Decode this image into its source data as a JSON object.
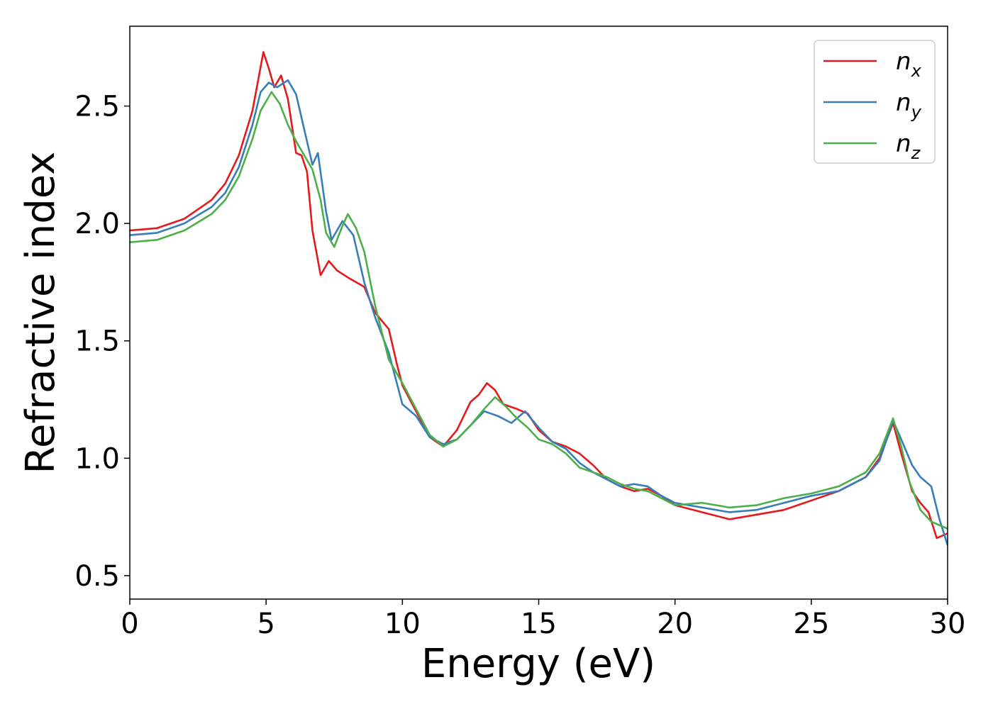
{
  "chart_data": {
    "type": "line",
    "xlabel": "Energy (eV)",
    "ylabel": "Refractive index",
    "xlim": [
      0,
      30
    ],
    "ylim": [
      0.4,
      2.84
    ],
    "xticks": [
      "0",
      "5",
      "10",
      "15",
      "20",
      "25",
      "30"
    ],
    "yticks": [
      "0.5",
      "1.0",
      "1.5",
      "2.0",
      "2.5"
    ],
    "legend_position": "top-right",
    "grid": false,
    "series": [
      {
        "name": "x",
        "label_base": "n",
        "label_sub": "x",
        "color": "#e41a1c",
        "points": [
          [
            0,
            1.97
          ],
          [
            1,
            1.98
          ],
          [
            2,
            2.02
          ],
          [
            3,
            2.1
          ],
          [
            3.5,
            2.17
          ],
          [
            4,
            2.29
          ],
          [
            4.5,
            2.48
          ],
          [
            4.9,
            2.73
          ],
          [
            5.1,
            2.66
          ],
          [
            5.3,
            2.58
          ],
          [
            5.55,
            2.63
          ],
          [
            5.8,
            2.53
          ],
          [
            6.1,
            2.3
          ],
          [
            6.3,
            2.29
          ],
          [
            6.5,
            2.22
          ],
          [
            6.7,
            1.97
          ],
          [
            7.0,
            1.78
          ],
          [
            7.3,
            1.84
          ],
          [
            7.6,
            1.8
          ],
          [
            8.0,
            1.77
          ],
          [
            8.3,
            1.75
          ],
          [
            8.6,
            1.73
          ],
          [
            9.0,
            1.62
          ],
          [
            9.5,
            1.55
          ],
          [
            9.8,
            1.4
          ],
          [
            10.0,
            1.31
          ],
          [
            10.5,
            1.2
          ],
          [
            11.0,
            1.09
          ],
          [
            11.5,
            1.05
          ],
          [
            12.0,
            1.12
          ],
          [
            12.5,
            1.24
          ],
          [
            12.8,
            1.27
          ],
          [
            13.1,
            1.32
          ],
          [
            13.4,
            1.29
          ],
          [
            13.7,
            1.23
          ],
          [
            14.2,
            1.21
          ],
          [
            14.6,
            1.19
          ],
          [
            15.0,
            1.12
          ],
          [
            15.5,
            1.07
          ],
          [
            16.0,
            1.05
          ],
          [
            16.5,
            1.02
          ],
          [
            17.0,
            0.97
          ],
          [
            17.5,
            0.91
          ],
          [
            18.0,
            0.88
          ],
          [
            18.5,
            0.86
          ],
          [
            19.0,
            0.87
          ],
          [
            19.5,
            0.84
          ],
          [
            20.0,
            0.8
          ],
          [
            21.0,
            0.77
          ],
          [
            22.0,
            0.74
          ],
          [
            23.0,
            0.76
          ],
          [
            24.0,
            0.78
          ],
          [
            25.0,
            0.82
          ],
          [
            26.0,
            0.86
          ],
          [
            27.0,
            0.92
          ],
          [
            27.5,
            1.0
          ],
          [
            28.0,
            1.15
          ],
          [
            28.3,
            1.02
          ],
          [
            28.7,
            0.86
          ],
          [
            29.0,
            0.81
          ],
          [
            29.3,
            0.77
          ],
          [
            29.6,
            0.66
          ],
          [
            30.0,
            0.68
          ]
        ]
      },
      {
        "name": "y",
        "label_base": "n",
        "label_sub": "y",
        "color": "#377eb8",
        "points": [
          [
            0,
            1.95
          ],
          [
            1,
            1.96
          ],
          [
            2,
            2.0
          ],
          [
            3,
            2.07
          ],
          [
            3.5,
            2.13
          ],
          [
            4,
            2.24
          ],
          [
            4.5,
            2.42
          ],
          [
            4.8,
            2.56
          ],
          [
            5.1,
            2.6
          ],
          [
            5.4,
            2.58
          ],
          [
            5.8,
            2.61
          ],
          [
            6.1,
            2.55
          ],
          [
            6.4,
            2.4
          ],
          [
            6.7,
            2.25
          ],
          [
            6.9,
            2.3
          ],
          [
            7.2,
            2.05
          ],
          [
            7.4,
            1.93
          ],
          [
            7.8,
            2.01
          ],
          [
            8.2,
            1.95
          ],
          [
            8.6,
            1.75
          ],
          [
            9.0,
            1.6
          ],
          [
            9.5,
            1.45
          ],
          [
            10.0,
            1.23
          ],
          [
            10.5,
            1.18
          ],
          [
            11.0,
            1.09
          ],
          [
            11.5,
            1.06
          ],
          [
            12.0,
            1.08
          ],
          [
            12.5,
            1.14
          ],
          [
            13.0,
            1.2
          ],
          [
            13.5,
            1.18
          ],
          [
            14.0,
            1.15
          ],
          [
            14.5,
            1.2
          ],
          [
            15.0,
            1.13
          ],
          [
            15.5,
            1.07
          ],
          [
            16.0,
            1.04
          ],
          [
            16.5,
            0.98
          ],
          [
            17.0,
            0.94
          ],
          [
            17.5,
            0.91
          ],
          [
            18.0,
            0.88
          ],
          [
            18.5,
            0.89
          ],
          [
            19.0,
            0.88
          ],
          [
            19.5,
            0.84
          ],
          [
            20.0,
            0.81
          ],
          [
            21.0,
            0.79
          ],
          [
            22.0,
            0.77
          ],
          [
            23.0,
            0.78
          ],
          [
            24.0,
            0.81
          ],
          [
            25.0,
            0.84
          ],
          [
            26.0,
            0.86
          ],
          [
            27.0,
            0.92
          ],
          [
            27.5,
            0.99
          ],
          [
            28.0,
            1.16
          ],
          [
            28.3,
            1.08
          ],
          [
            28.7,
            0.97
          ],
          [
            29.0,
            0.92
          ],
          [
            29.4,
            0.88
          ],
          [
            29.7,
            0.74
          ],
          [
            30.0,
            0.63
          ]
        ]
      },
      {
        "name": "z",
        "label_base": "n",
        "label_sub": "z",
        "color": "#4daf4a",
        "points": [
          [
            0,
            1.92
          ],
          [
            1,
            1.93
          ],
          [
            2,
            1.97
          ],
          [
            3,
            2.04
          ],
          [
            3.5,
            2.1
          ],
          [
            4,
            2.2
          ],
          [
            4.5,
            2.36
          ],
          [
            4.8,
            2.48
          ],
          [
            5.2,
            2.56
          ],
          [
            5.5,
            2.51
          ],
          [
            5.8,
            2.42
          ],
          [
            6.1,
            2.35
          ],
          [
            6.4,
            2.29
          ],
          [
            6.7,
            2.23
          ],
          [
            7.0,
            2.1
          ],
          [
            7.2,
            1.96
          ],
          [
            7.5,
            1.9
          ],
          [
            7.8,
            1.99
          ],
          [
            8.0,
            2.04
          ],
          [
            8.3,
            1.98
          ],
          [
            8.6,
            1.88
          ],
          [
            9.0,
            1.65
          ],
          [
            9.5,
            1.42
          ],
          [
            10.0,
            1.32
          ],
          [
            10.5,
            1.21
          ],
          [
            11.0,
            1.1
          ],
          [
            11.5,
            1.05
          ],
          [
            12.0,
            1.08
          ],
          [
            12.5,
            1.14
          ],
          [
            13.0,
            1.21
          ],
          [
            13.4,
            1.26
          ],
          [
            13.8,
            1.22
          ],
          [
            14.2,
            1.17
          ],
          [
            14.6,
            1.13
          ],
          [
            15.0,
            1.08
          ],
          [
            15.5,
            1.06
          ],
          [
            16.0,
            1.02
          ],
          [
            16.5,
            0.96
          ],
          [
            17.0,
            0.94
          ],
          [
            17.5,
            0.92
          ],
          [
            18.0,
            0.89
          ],
          [
            18.5,
            0.87
          ],
          [
            19.0,
            0.86
          ],
          [
            19.5,
            0.83
          ],
          [
            20.0,
            0.8
          ],
          [
            21.0,
            0.81
          ],
          [
            22.0,
            0.79
          ],
          [
            23.0,
            0.8
          ],
          [
            24.0,
            0.83
          ],
          [
            25.0,
            0.85
          ],
          [
            26.0,
            0.88
          ],
          [
            27.0,
            0.94
          ],
          [
            27.5,
            1.02
          ],
          [
            28.0,
            1.17
          ],
          [
            28.3,
            1.05
          ],
          [
            28.6,
            0.9
          ],
          [
            29.0,
            0.78
          ],
          [
            29.4,
            0.73
          ],
          [
            30.0,
            0.7
          ]
        ]
      }
    ]
  }
}
